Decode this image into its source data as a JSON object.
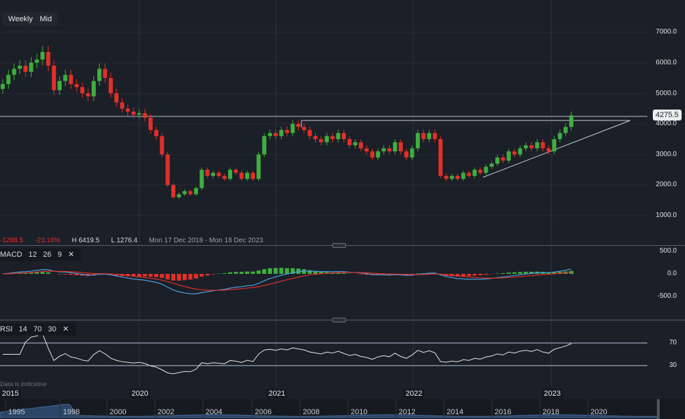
{
  "toolbar": {
    "weekly": "Weekly",
    "mid": "Mid"
  },
  "price_axis": {
    "ticks": [
      "7000.0",
      "6000.0",
      "5000.0",
      "4000.0",
      "3000.0",
      "2000.0",
      "1000.0"
    ],
    "current": "4275.5"
  },
  "info": {
    "change": "-1288.5",
    "change_pct": "-23.16%",
    "high": "H 6419.5",
    "low": "L 1276.4",
    "range": "Mon 17 Dec 2018 - Mon 18 Dec 2023"
  },
  "macd": {
    "name": "MACD",
    "p1": "12",
    "p2": "26",
    "p3": "9",
    "close": "✕",
    "ticks": [
      "500.0",
      "0.0",
      "-500.0"
    ]
  },
  "rsi": {
    "name": "RSI",
    "p1": "14",
    "p2": "70",
    "p3": "30",
    "close": "✕",
    "ticks": [
      "70",
      "30"
    ]
  },
  "disclaimer": "Data is indicative",
  "time_axis": [
    "2015",
    "2020",
    "2021",
    "2022",
    "2023"
  ],
  "navigator": [
    "1995",
    "1998",
    "2000",
    "2002",
    "2004",
    "2006",
    "2008",
    "2010",
    "2012",
    "2014",
    "2016",
    "2018",
    "2020"
  ],
  "colors": {
    "up": "#3fae3f",
    "down": "#e0302a",
    "macd": "#4a9fe0",
    "signal": "#e0302a",
    "rsi": "#e8e8e8"
  },
  "chart_data": {
    "type": "candlestick",
    "x_start": "2019-01",
    "interval": "half-month",
    "closes": [
      5300,
      5600,
      5800,
      5900,
      5700,
      6000,
      6100,
      6350,
      5900,
      5100,
      5400,
      5600,
      5300,
      5200,
      5000,
      4900,
      5400,
      5800,
      5500,
      5000,
      4700,
      4500,
      4400,
      4300,
      4350,
      4200,
      3800,
      3600,
      3000,
      2000,
      1600,
      1700,
      1800,
      1700,
      1900,
      2500,
      2300,
      2400,
      2300,
      2200,
      2500,
      2400,
      2200,
      2400,
      2200,
      3000,
      3600,
      3700,
      3600,
      3800,
      3700,
      4000,
      3900,
      3800,
      3600,
      3500,
      3400,
      3600,
      3500,
      3700,
      3500,
      3300,
      3400,
      3200,
      3100,
      2900,
      3100,
      3200,
      3100,
      3400,
      3100,
      2900,
      3200,
      3700,
      3500,
      3700,
      3500,
      2300,
      2200,
      2300,
      2200,
      2400,
      2300,
      2500,
      2400,
      2600,
      2700,
      2900,
      2800,
      3100,
      3000,
      3200,
      3300,
      3200,
      3400,
      3200,
      3100,
      3500,
      3700,
      3900,
      4275.5
    ],
    "resistance": 4275.5,
    "ylim": [
      1000,
      7000
    ]
  }
}
